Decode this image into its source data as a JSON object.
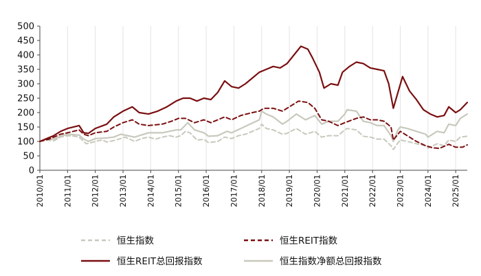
{
  "chart_data": {
    "type": "line",
    "title": "",
    "xlabel": "",
    "ylabel": "",
    "ylim": [
      0,
      500
    ],
    "yticks": [
      0,
      50,
      100,
      150,
      200,
      250,
      300,
      350,
      400,
      450,
      500
    ],
    "xlim": [
      "2010/01",
      "2025/06"
    ],
    "xticks": [
      "2010/01",
      "2011/01",
      "2012/01",
      "2013/01",
      "2014/01",
      "2015/01",
      "2016/01",
      "2017/01",
      "2018/01",
      "2019/01",
      "2020/01",
      "2021/01",
      "2022/01",
      "2023/01",
      "2024/01",
      "2025/01"
    ],
    "grid": "vertical",
    "legend_position": "bottom",
    "series": [
      {
        "name": "恒生指数",
        "color": "#c8c8bd",
        "style": "dashed",
        "points": [
          [
            "2010/01",
            100
          ],
          [
            "2010/04",
            105
          ],
          [
            "2010/07",
            102
          ],
          [
            "2010/10",
            115
          ],
          [
            "2011/01",
            120
          ],
          [
            "2011/04",
            118
          ],
          [
            "2011/06",
            115
          ],
          [
            "2011/09",
            92
          ],
          [
            "2011/11",
            95
          ],
          [
            "2012/01",
            100
          ],
          [
            "2012/04",
            105
          ],
          [
            "2012/06",
            98
          ],
          [
            "2012/09",
            103
          ],
          [
            "2012/12",
            110
          ],
          [
            "2013/02",
            115
          ],
          [
            "2013/06",
            100
          ],
          [
            "2013/09",
            110
          ],
          [
            "2013/12",
            115
          ],
          [
            "2014/03",
            108
          ],
          [
            "2014/06",
            115
          ],
          [
            "2014/09",
            120
          ],
          [
            "2014/12",
            115
          ],
          [
            "2015/02",
            120
          ],
          [
            "2015/04",
            135
          ],
          [
            "2015/06",
            130
          ],
          [
            "2015/09",
            105
          ],
          [
            "2015/12",
            107
          ],
          [
            "2016/02",
            96
          ],
          [
            "2016/06",
            100
          ],
          [
            "2016/09",
            115
          ],
          [
            "2016/12",
            110
          ],
          [
            "2017/03",
            120
          ],
          [
            "2017/06",
            125
          ],
          [
            "2017/09",
            135
          ],
          [
            "2017/12",
            145
          ],
          [
            "2018/01",
            160
          ],
          [
            "2018/03",
            145
          ],
          [
            "2018/06",
            140
          ],
          [
            "2018/10",
            125
          ],
          [
            "2018/12",
            128
          ],
          [
            "2019/04",
            145
          ],
          [
            "2019/08",
            125
          ],
          [
            "2019/12",
            135
          ],
          [
            "2020/03",
            115
          ],
          [
            "2020/06",
            120
          ],
          [
            "2020/10",
            120
          ],
          [
            "2021/01",
            140
          ],
          [
            "2021/02",
            145
          ],
          [
            "2021/06",
            140
          ],
          [
            "2021/09",
            118
          ],
          [
            "2021/12",
            115
          ],
          [
            "2022/03",
            108
          ],
          [
            "2022/06",
            108
          ],
          [
            "2022/09",
            85
          ],
          [
            "2022/10",
            72
          ],
          [
            "2022/12",
            95
          ],
          [
            "2023/01",
            105
          ],
          [
            "2023/04",
            100
          ],
          [
            "2023/08",
            92
          ],
          [
            "2023/12",
            85
          ],
          [
            "2024/01",
            77
          ],
          [
            "2024/05",
            92
          ],
          [
            "2024/08",
            85
          ],
          [
            "2024/10",
            105
          ],
          [
            "2025/01",
            100
          ],
          [
            "2025/03",
            115
          ],
          [
            "2025/06",
            118
          ]
        ]
      },
      {
        "name": "恒生REIT指数",
        "color": "#7a0e10",
        "style": "dashed",
        "points": [
          [
            "2010/01",
            100
          ],
          [
            "2010/05",
            108
          ],
          [
            "2010/10",
            125
          ],
          [
            "2011/01",
            130
          ],
          [
            "2011/06",
            140
          ],
          [
            "2011/08",
            125
          ],
          [
            "2011/10",
            120
          ],
          [
            "2012/01",
            130
          ],
          [
            "2012/06",
            135
          ],
          [
            "2012/09",
            150
          ],
          [
            "2013/01",
            165
          ],
          [
            "2013/05",
            175
          ],
          [
            "2013/08",
            160
          ],
          [
            "2013/12",
            155
          ],
          [
            "2014/06",
            160
          ],
          [
            "2014/10",
            170
          ],
          [
            "2015/01",
            180
          ],
          [
            "2015/04",
            180
          ],
          [
            "2015/08",
            165
          ],
          [
            "2015/12",
            175
          ],
          [
            "2016/03",
            165
          ],
          [
            "2016/06",
            175
          ],
          [
            "2016/09",
            185
          ],
          [
            "2016/12",
            175
          ],
          [
            "2017/04",
            190
          ],
          [
            "2017/09",
            200
          ],
          [
            "2017/12",
            205
          ],
          [
            "2018/02",
            215
          ],
          [
            "2018/06",
            215
          ],
          [
            "2018/10",
            205
          ],
          [
            "2019/01",
            220
          ],
          [
            "2019/05",
            240
          ],
          [
            "2019/09",
            235
          ],
          [
            "2019/12",
            215
          ],
          [
            "2020/03",
            175
          ],
          [
            "2020/06",
            170
          ],
          [
            "2020/10",
            155
          ],
          [
            "2021/01",
            165
          ],
          [
            "2021/06",
            180
          ],
          [
            "2021/09",
            185
          ],
          [
            "2021/12",
            175
          ],
          [
            "2022/03",
            175
          ],
          [
            "2022/06",
            170
          ],
          [
            "2022/09",
            150
          ],
          [
            "2022/10",
            105
          ],
          [
            "2022/12",
            125
          ],
          [
            "2023/01",
            135
          ],
          [
            "2023/04",
            120
          ],
          [
            "2023/08",
            100
          ],
          [
            "2023/12",
            85
          ],
          [
            "2024/03",
            78
          ],
          [
            "2024/06",
            76
          ],
          [
            "2024/10",
            90
          ],
          [
            "2025/01",
            80
          ],
          [
            "2025/04",
            80
          ],
          [
            "2025/06",
            88
          ]
        ]
      },
      {
        "name": "恒生REIT总回报指数",
        "color": "#7a0e10",
        "style": "solid",
        "points": [
          [
            "2010/01",
            100
          ],
          [
            "2010/04",
            110
          ],
          [
            "2010/07",
            120
          ],
          [
            "2010/10",
            135
          ],
          [
            "2011/01",
            145
          ],
          [
            "2011/06",
            155
          ],
          [
            "2011/08",
            130
          ],
          [
            "2011/10",
            128
          ],
          [
            "2012/01",
            145
          ],
          [
            "2012/06",
            160
          ],
          [
            "2012/09",
            185
          ],
          [
            "2013/01",
            205
          ],
          [
            "2013/05",
            220
          ],
          [
            "2013/08",
            200
          ],
          [
            "2013/12",
            195
          ],
          [
            "2014/04",
            205
          ],
          [
            "2014/08",
            220
          ],
          [
            "2014/12",
            240
          ],
          [
            "2015/03",
            250
          ],
          [
            "2015/06",
            250
          ],
          [
            "2015/09",
            240
          ],
          [
            "2015/12",
            250
          ],
          [
            "2016/03",
            245
          ],
          [
            "2016/06",
            270
          ],
          [
            "2016/09",
            310
          ],
          [
            "2016/12",
            290
          ],
          [
            "2017/03",
            285
          ],
          [
            "2017/06",
            300
          ],
          [
            "2017/09",
            320
          ],
          [
            "2017/12",
            340
          ],
          [
            "2018/03",
            350
          ],
          [
            "2018/06",
            360
          ],
          [
            "2018/09",
            355
          ],
          [
            "2018/12",
            370
          ],
          [
            "2019/03",
            400
          ],
          [
            "2019/06",
            430
          ],
          [
            "2019/09",
            420
          ],
          [
            "2019/11",
            390
          ],
          [
            "2020/02",
            340
          ],
          [
            "2020/04",
            285
          ],
          [
            "2020/07",
            300
          ],
          [
            "2020/10",
            295
          ],
          [
            "2020/12",
            340
          ],
          [
            "2021/03",
            360
          ],
          [
            "2021/06",
            375
          ],
          [
            "2021/09",
            370
          ],
          [
            "2021/12",
            355
          ],
          [
            "2022/03",
            350
          ],
          [
            "2022/06",
            345
          ],
          [
            "2022/08",
            300
          ],
          [
            "2022/10",
            215
          ],
          [
            "2022/12",
            270
          ],
          [
            "2023/02",
            325
          ],
          [
            "2023/05",
            275
          ],
          [
            "2023/08",
            245
          ],
          [
            "2023/11",
            210
          ],
          [
            "2024/02",
            195
          ],
          [
            "2024/05",
            185
          ],
          [
            "2024/08",
            190
          ],
          [
            "2024/10",
            220
          ],
          [
            "2025/01",
            200
          ],
          [
            "2025/03",
            210
          ],
          [
            "2025/06",
            235
          ]
        ]
      },
      {
        "name": "恒生指数净额总回报指数",
        "color": "#c8c8bd",
        "style": "solid",
        "points": [
          [
            "2010/01",
            100
          ],
          [
            "2010/04",
            108
          ],
          [
            "2010/07",
            108
          ],
          [
            "2010/10",
            118
          ],
          [
            "2011/01",
            125
          ],
          [
            "2011/06",
            122
          ],
          [
            "2011/08",
            108
          ],
          [
            "2011/10",
            100
          ],
          [
            "2012/01",
            110
          ],
          [
            "2012/06",
            112
          ],
          [
            "2012/09",
            115
          ],
          [
            "2012/12",
            125
          ],
          [
            "2013/06",
            115
          ],
          [
            "2013/12",
            130
          ],
          [
            "2014/06",
            130
          ],
          [
            "2014/09",
            135
          ],
          [
            "2014/12",
            140
          ],
          [
            "2015/02",
            140
          ],
          [
            "2015/05",
            165
          ],
          [
            "2015/08",
            140
          ],
          [
            "2015/12",
            130
          ],
          [
            "2016/02",
            118
          ],
          [
            "2016/06",
            120
          ],
          [
            "2016/10",
            135
          ],
          [
            "2016/12",
            130
          ],
          [
            "2017/04",
            145
          ],
          [
            "2017/08",
            160
          ],
          [
            "2017/12",
            175
          ],
          [
            "2018/01",
            205
          ],
          [
            "2018/03",
            195
          ],
          [
            "2018/06",
            185
          ],
          [
            "2018/10",
            160
          ],
          [
            "2018/12",
            170
          ],
          [
            "2019/04",
            195
          ],
          [
            "2019/08",
            175
          ],
          [
            "2019/12",
            190
          ],
          [
            "2020/03",
            160
          ],
          [
            "2020/06",
            170
          ],
          [
            "2020/10",
            170
          ],
          [
            "2021/01",
            195
          ],
          [
            "2021/02",
            210
          ],
          [
            "2021/06",
            205
          ],
          [
            "2021/09",
            170
          ],
          [
            "2021/12",
            165
          ],
          [
            "2022/03",
            155
          ],
          [
            "2022/06",
            155
          ],
          [
            "2022/09",
            120
          ],
          [
            "2022/10",
            100
          ],
          [
            "2022/12",
            140
          ],
          [
            "2023/01",
            150
          ],
          [
            "2023/04",
            145
          ],
          [
            "2023/08",
            135
          ],
          [
            "2023/12",
            125
          ],
          [
            "2024/01",
            115
          ],
          [
            "2024/05",
            135
          ],
          [
            "2024/08",
            130
          ],
          [
            "2024/10",
            160
          ],
          [
            "2025/01",
            155
          ],
          [
            "2025/03",
            180
          ],
          [
            "2025/06",
            195
          ]
        ]
      }
    ]
  }
}
